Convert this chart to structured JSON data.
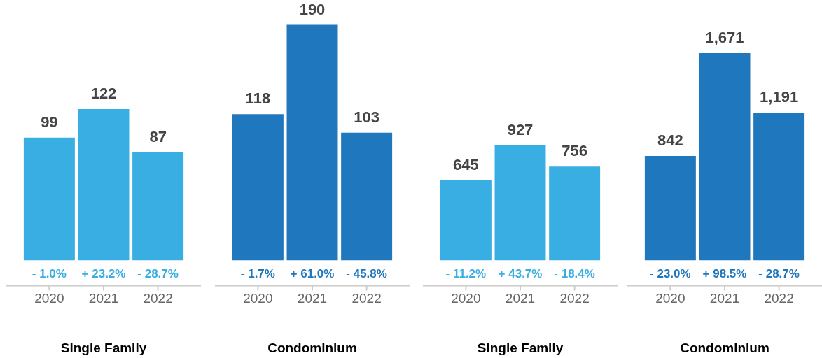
{
  "chart_data": [
    {
      "type": "bar",
      "xlabel": "Single Family",
      "categories": [
        "2020",
        "2021",
        "2022"
      ],
      "values": [
        99,
        122,
        87
      ],
      "color": "#38aee3",
      "ylim": [
        0,
        210
      ],
      "tick_labels": "x",
      "data_labels": true,
      "annotations": [
        "- 1.0%",
        "+ 23.2%",
        "- 28.7%"
      ]
    },
    {
      "type": "bar",
      "xlabel": "Condominium",
      "categories": [
        "2020",
        "2021",
        "2022"
      ],
      "values": [
        118,
        190,
        103
      ],
      "color": "#1f77bd",
      "ylim": [
        0,
        210
      ],
      "tick_labels": "x",
      "data_labels": true,
      "annotations": [
        "- 1.7%",
        "+ 61.0%",
        "- 45.8%"
      ]
    },
    {
      "type": "bar",
      "xlabel": "Single Family",
      "categories": [
        "2020",
        "2021",
        "2022"
      ],
      "values": [
        645,
        927,
        756
      ],
      "color": "#38aee3",
      "ylim": [
        0,
        2100
      ],
      "tick_labels": "x",
      "data_labels": true,
      "annotations": [
        "- 11.2%",
        "+ 43.7%",
        "- 18.4%"
      ]
    },
    {
      "type": "bar",
      "xlabel": "Condominium",
      "categories": [
        "2020",
        "2021",
        "2022"
      ],
      "values": [
        842,
        1671,
        1191
      ],
      "value_labels": [
        "842",
        "1,671",
        "1,191"
      ],
      "color": "#1f77bd",
      "ylim": [
        0,
        2100
      ],
      "tick_labels": "x",
      "annotations": [
        "- 23.0%",
        "+ 98.5%",
        "- 28.7%"
      ]
    }
  ]
}
